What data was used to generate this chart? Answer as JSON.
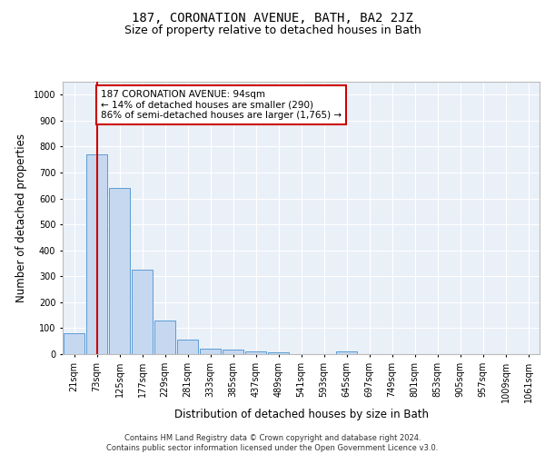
{
  "title": "187, CORONATION AVENUE, BATH, BA2 2JZ",
  "subtitle": "Size of property relative to detached houses in Bath",
  "xlabel": "Distribution of detached houses by size in Bath",
  "ylabel": "Number of detached properties",
  "categories": [
    "21sqm",
    "73sqm",
    "125sqm",
    "177sqm",
    "229sqm",
    "281sqm",
    "333sqm",
    "385sqm",
    "437sqm",
    "489sqm",
    "541sqm",
    "593sqm",
    "645sqm",
    "697sqm",
    "749sqm",
    "801sqm",
    "853sqm",
    "905sqm",
    "957sqm",
    "1009sqm",
    "1061sqm"
  ],
  "values": [
    80,
    770,
    640,
    325,
    130,
    55,
    22,
    17,
    10,
    8,
    0,
    0,
    10,
    0,
    0,
    0,
    0,
    0,
    0,
    0,
    0
  ],
  "bar_color": "#c5d8f0",
  "bar_edge_color": "#5b9bd5",
  "vline_x": 1,
  "vline_color": "#cc0000",
  "annotation_text": "187 CORONATION AVENUE: 94sqm\n← 14% of detached houses are smaller (290)\n86% of semi-detached houses are larger (1,765) →",
  "annotation_box_color": "white",
  "annotation_box_edge": "#cc0000",
  "ylim": [
    0,
    1050
  ],
  "yticks": [
    0,
    100,
    200,
    300,
    400,
    500,
    600,
    700,
    800,
    900,
    1000
  ],
  "footer": "Contains HM Land Registry data © Crown copyright and database right 2024.\nContains public sector information licensed under the Open Government Licence v3.0.",
  "bg_color": "#eaf0f8",
  "title_fontsize": 10,
  "subtitle_fontsize": 9,
  "tick_fontsize": 7,
  "label_fontsize": 8.5,
  "footer_fontsize": 6
}
